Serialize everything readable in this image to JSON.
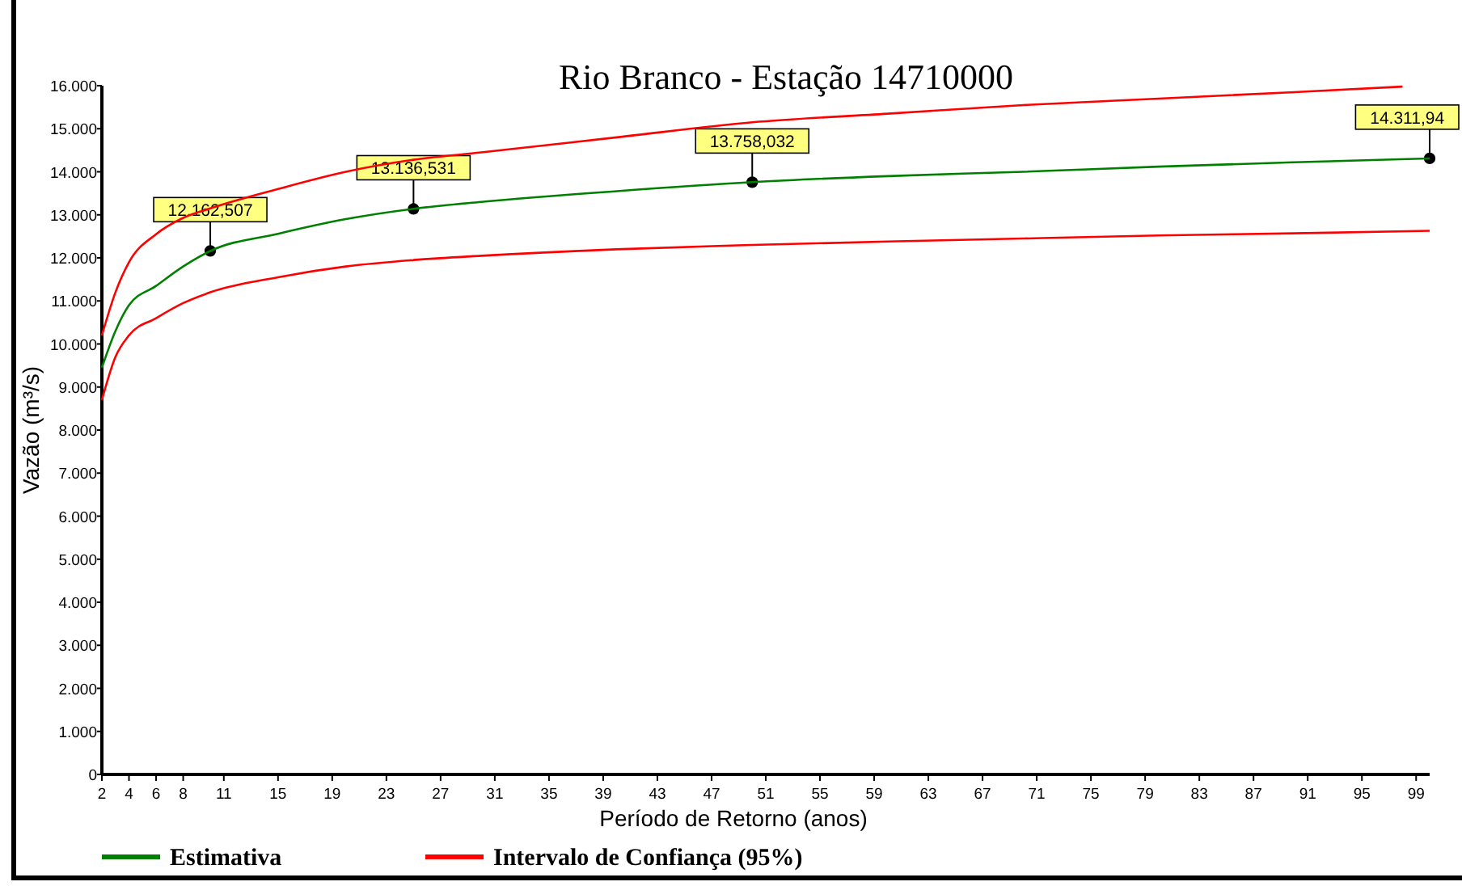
{
  "chart_data": {
    "type": "line",
    "title": "Rio Branco - Estação 14710000",
    "xlabel": "Período de Retorno (anos)",
    "ylabel": "Vazão (m³/s)",
    "xlim": [
      2,
      100
    ],
    "ylim": [
      0,
      16000
    ],
    "xticks": [
      2,
      4,
      6,
      8,
      11,
      15,
      19,
      23,
      27,
      31,
      35,
      39,
      43,
      47,
      51,
      55,
      59,
      63,
      67,
      71,
      75,
      79,
      83,
      87,
      91,
      95,
      99
    ],
    "yticks": [
      0,
      {
        "value": 1000,
        "label": "1.000"
      },
      {
        "value": 2000,
        "label": "2.000"
      },
      {
        "value": 3000,
        "label": "3.000"
      },
      {
        "value": 4000,
        "label": "4.000"
      },
      {
        "value": 5000,
        "label": "5.000"
      },
      {
        "value": 6000,
        "label": "6.000"
      },
      {
        "value": 7000,
        "label": "7.000"
      },
      {
        "value": 8000,
        "label": "8.000"
      },
      {
        "value": 9000,
        "label": "9.000"
      },
      {
        "value": 10000,
        "label": "10.000"
      },
      {
        "value": 11000,
        "label": "11.000"
      },
      {
        "value": 12000,
        "label": "12.000"
      },
      {
        "value": 13000,
        "label": "13.000"
      },
      {
        "value": 14000,
        "label": "14.000"
      },
      {
        "value": 15000,
        "label": "15.000"
      },
      {
        "value": 16000,
        "label": "16.000"
      }
    ],
    "grid": false,
    "legend": "bottom",
    "marker": "none",
    "line_style": "solid",
    "series": [
      {
        "name": "Estimativa",
        "color": "#008000",
        "x": [
          2,
          3,
          4,
          6,
          8,
          10,
          15,
          20,
          25,
          30,
          40,
          50,
          60,
          70,
          80,
          90,
          100
        ],
        "values": [
          9450,
          10300,
          10900,
          11350,
          11800,
          12160,
          12560,
          12900,
          13140,
          13300,
          13550,
          13760,
          13900,
          14000,
          14120,
          14220,
          14310
        ]
      },
      {
        "name": "Intervalo de Confiança (95%)",
        "color": "#ff0000",
        "x": [
          2,
          3,
          4,
          6,
          8,
          10,
          15,
          20,
          25,
          30,
          40,
          50,
          60,
          70,
          80,
          90,
          98
        ],
        "values": [
          10200,
          11200,
          11900,
          12550,
          12930,
          13150,
          13600,
          14000,
          14280,
          14450,
          14800,
          15150,
          15350,
          15550,
          15700,
          15850,
          15980
        ]
      },
      {
        "color": "#ff0000",
        "x": [
          2,
          3,
          4,
          6,
          8,
          10,
          15,
          20,
          25,
          30,
          40,
          50,
          60,
          70,
          80,
          90,
          100
        ],
        "values": [
          8700,
          9700,
          10200,
          10600,
          10950,
          11200,
          11550,
          11800,
          11950,
          12050,
          12200,
          12300,
          12380,
          12450,
          12520,
          12570,
          12630
        ]
      },
      {
        "type": "scatter",
        "marker": "circle",
        "color": "#000000",
        "x": [
          10,
          25,
          50,
          100
        ],
        "values": [
          12162.507,
          13136.531,
          13758.032,
          14311.94
        ],
        "value_labels": [
          "12.162,507",
          "13.136,531",
          "13.758,032",
          "14.311,94"
        ]
      }
    ]
  }
}
